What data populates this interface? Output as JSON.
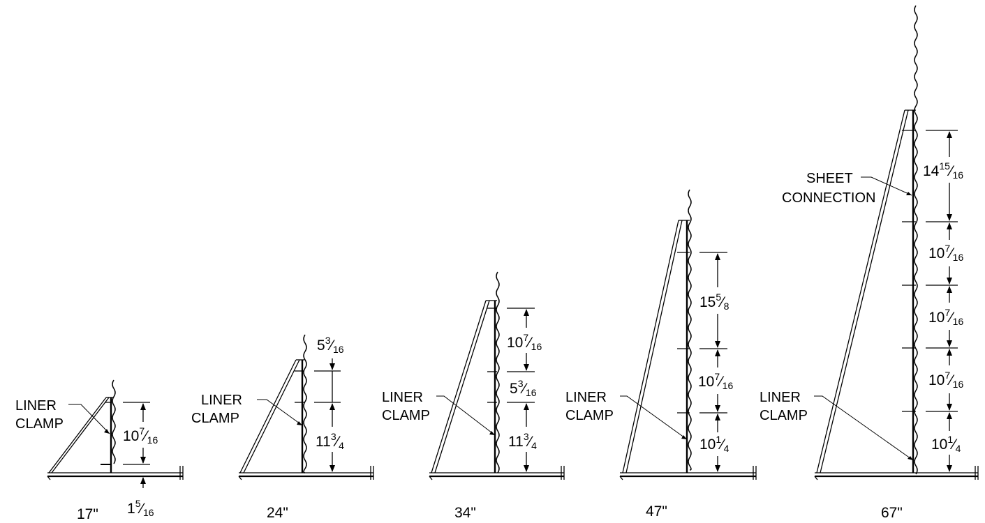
{
  "diagram": {
    "units": [
      {
        "height_label": "17\"",
        "dimensions": [
          {
            "whole": "10",
            "num": "7",
            "den": "16"
          },
          {
            "whole": "1",
            "num": "5",
            "den": "16"
          }
        ],
        "callouts": [
          {
            "line1": "LINER",
            "line2": "CLAMP"
          }
        ]
      },
      {
        "height_label": "24\"",
        "dimensions": [
          {
            "whole": "5",
            "num": "3",
            "den": "16"
          },
          {
            "whole": "11",
            "num": "3",
            "den": "4"
          }
        ],
        "callouts": [
          {
            "line1": "LINER",
            "line2": "CLAMP"
          }
        ]
      },
      {
        "height_label": "34\"",
        "dimensions": [
          {
            "whole": "10",
            "num": "7",
            "den": "16"
          },
          {
            "whole": "5",
            "num": "3",
            "den": "16"
          },
          {
            "whole": "11",
            "num": "3",
            "den": "4"
          }
        ],
        "callouts": [
          {
            "line1": "LINER",
            "line2": "CLAMP"
          }
        ]
      },
      {
        "height_label": "47\"",
        "dimensions": [
          {
            "whole": "15",
            "num": "5",
            "den": "8"
          },
          {
            "whole": "10",
            "num": "7",
            "den": "16"
          },
          {
            "whole": "10",
            "num": "1",
            "den": "4"
          }
        ],
        "callouts": [
          {
            "line1": "LINER",
            "line2": "CLAMP"
          }
        ]
      },
      {
        "height_label": "67\"",
        "dimensions": [
          {
            "whole": "14",
            "num": "15",
            "den": "16"
          },
          {
            "whole": "10",
            "num": "7",
            "den": "16"
          },
          {
            "whole": "10",
            "num": "7",
            "den": "16"
          },
          {
            "whole": "10",
            "num": "7",
            "den": "16"
          },
          {
            "whole": "10",
            "num": "1",
            "den": "4"
          }
        ],
        "callouts": [
          {
            "line1": "SHEET",
            "line2": "CONNECTION"
          },
          {
            "line1": "LINER",
            "line2": "CLAMP"
          }
        ]
      }
    ]
  }
}
